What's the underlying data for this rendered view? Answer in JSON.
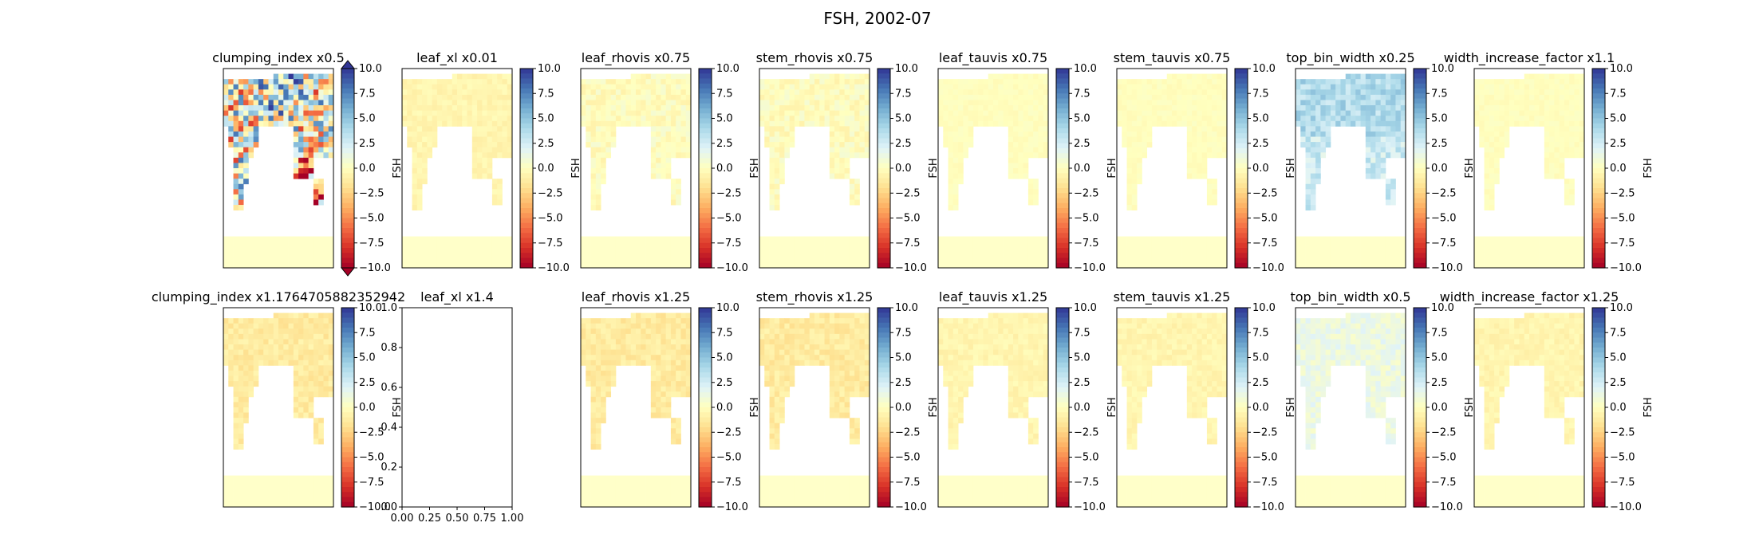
{
  "figure": {
    "title": "FSH, 2002-07"
  },
  "colorbar": {
    "label": "FSH",
    "ticks": [
      "10.0",
      "7.5",
      "5.0",
      "2.5",
      "0.0",
      "−2.5",
      "−5.0",
      "−7.5",
      "−10.0"
    ],
    "range": [
      -10,
      10
    ],
    "colors": [
      "#a50026",
      "#d73027",
      "#f46d43",
      "#fdae61",
      "#fee090",
      "#ffffbf",
      "#e0f3f8",
      "#abd9e9",
      "#74add1",
      "#4575b4",
      "#313695"
    ]
  },
  "colors": {
    "land_fill": "#ffffc9",
    "frame": "#000000"
  },
  "chart_data": [
    {
      "type": "heatmap",
      "title": "clumping_index x0.5",
      "extend": "both",
      "pattern": "strong-mixed"
    },
    {
      "type": "heatmap",
      "title": "leaf_xl x0.01",
      "pattern": "faint-negative"
    },
    {
      "type": "heatmap",
      "title": "leaf_rhovis x0.75",
      "pattern": "faint-mixed"
    },
    {
      "type": "heatmap",
      "title": "stem_rhovis x0.75",
      "pattern": "faint-mixed"
    },
    {
      "type": "heatmap",
      "title": "leaf_tauvis x0.75",
      "pattern": "near-zero"
    },
    {
      "type": "heatmap",
      "title": "stem_tauvis x0.75",
      "pattern": "near-zero"
    },
    {
      "type": "heatmap",
      "title": "top_bin_width x0.25",
      "pattern": "positive"
    },
    {
      "type": "heatmap",
      "title": "width_increase_factor x1.1",
      "pattern": "near-zero"
    },
    {
      "type": "heatmap",
      "title": "clumping_index x1.1764705882352942",
      "pattern": "negative"
    },
    {
      "type": "empty",
      "title": "leaf_xl x1.4",
      "xticks": [
        "0.00",
        "0.25",
        "0.50",
        "0.75",
        "1.00"
      ],
      "yticks": [
        "0.0",
        "0.2",
        "0.4",
        "0.6",
        "0.8",
        "1.0"
      ],
      "xlim": [
        0,
        1
      ],
      "ylim": [
        0,
        1
      ]
    },
    {
      "type": "heatmap",
      "title": "leaf_rhovis x1.25",
      "pattern": "negative"
    },
    {
      "type": "heatmap",
      "title": "stem_rhovis x1.25",
      "pattern": "negative"
    },
    {
      "type": "heatmap",
      "title": "leaf_tauvis x1.25",
      "pattern": "faint-negative"
    },
    {
      "type": "heatmap",
      "title": "stem_tauvis x1.25",
      "pattern": "faint-negative"
    },
    {
      "type": "heatmap",
      "title": "top_bin_width x0.5",
      "pattern": "faint-positive"
    },
    {
      "type": "heatmap",
      "title": "width_increase_factor x1.25",
      "pattern": "faint-negative"
    }
  ]
}
